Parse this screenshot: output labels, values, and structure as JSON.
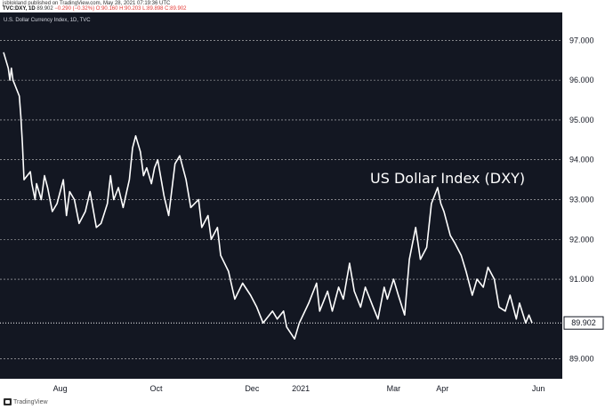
{
  "header": {
    "publisher": "jsblokland published on TradingView.com, May 28, 2021 07:19:36 UTC",
    "symbol": "TVC:DXY, 1D",
    "price": "89.902",
    "change": "−0.290 (−0.32%)",
    "ohlc": "O:90.160 H:90.203 L:89.898 C:89.902"
  },
  "footer": {
    "brand": "TradingView"
  },
  "chart_data": {
    "type": "line",
    "title": "U.S. Dollar Currency Index, 1D, TVC",
    "annotation": "US Dollar Index (DXY)",
    "x_ticks": [
      "Aug",
      "Oct",
      "Dec",
      "2021",
      "Mar",
      "Apr",
      "Jun"
    ],
    "y_ticks": [
      "97.000",
      "96.000",
      "95.000",
      "94.000",
      "93.000",
      "92.000",
      "91.000",
      "89.000"
    ],
    "ylim": [
      88.5,
      97.7
    ],
    "last_value": 89.902,
    "last_value_label": "89.902",
    "grid": true,
    "line_color": "#ffffff",
    "background": "#131722",
    "series": [
      {
        "x": [
          "2020-06-26",
          "2020-06-29",
          "2020-06-30",
          "2020-07-01",
          "2020-07-02",
          "2020-07-06",
          "2020-07-07",
          "2020-07-08",
          "2020-07-09",
          "2020-07-13",
          "2020-07-14",
          "2020-07-16",
          "2020-07-17",
          "2020-07-20",
          "2020-07-22",
          "2020-07-24",
          "2020-07-27",
          "2020-07-30",
          "2020-08-03",
          "2020-08-05",
          "2020-08-07",
          "2020-08-10",
          "2020-08-13",
          "2020-08-17",
          "2020-08-20",
          "2020-08-24",
          "2020-08-27",
          "2020-08-31",
          "2020-09-02",
          "2020-09-04",
          "2020-09-07",
          "2020-09-10",
          "2020-09-14",
          "2020-09-16",
          "2020-09-18",
          "2020-09-21",
          "2020-09-23",
          "2020-09-25",
          "2020-09-28",
          "2020-09-30",
          "2020-10-02",
          "2020-10-06",
          "2020-10-09",
          "2020-10-13",
          "2020-10-16",
          "2020-10-20",
          "2020-10-23",
          "2020-10-28",
          "2020-10-30",
          "2020-11-03",
          "2020-11-05",
          "2020-11-09",
          "2020-11-11",
          "2020-11-16",
          "2020-11-20",
          "2020-11-25",
          "2020-11-30",
          "2020-12-04",
          "2020-12-08",
          "2020-12-14",
          "2020-12-17",
          "2020-12-21",
          "2020-12-23",
          "2020-12-28",
          "2020-12-31",
          "2021-01-06",
          "2021-01-11",
          "2021-01-13",
          "2021-01-18",
          "2021-01-21",
          "2021-01-25",
          "2021-01-28",
          "2021-02-01",
          "2021-02-04",
          "2021-02-08",
          "2021-02-11",
          "2021-02-16",
          "2021-02-19",
          "2021-02-23",
          "2021-02-25",
          "2021-03-01",
          "2021-03-04",
          "2021-03-08",
          "2021-03-11",
          "2021-03-15",
          "2021-03-18",
          "2021-03-22",
          "2021-03-25",
          "2021-03-29",
          "2021-03-31",
          "2021-04-02",
          "2021-04-06",
          "2021-04-09",
          "2021-04-13",
          "2021-04-16",
          "2021-04-20",
          "2021-04-23",
          "2021-04-27",
          "2021-04-30",
          "2021-05-04",
          "2021-05-07",
          "2021-05-11",
          "2021-05-14",
          "2021-05-18",
          "2021-05-20",
          "2021-05-24",
          "2021-05-26",
          "2021-05-28"
        ],
        "y": [
          96.7,
          96.3,
          96.0,
          96.3,
          96.0,
          95.6,
          95.1,
          94.4,
          93.5,
          93.7,
          93.4,
          93.0,
          93.4,
          93.0,
          93.6,
          93.3,
          92.7,
          92.9,
          93.5,
          92.6,
          93.2,
          93.0,
          92.4,
          92.7,
          93.2,
          92.3,
          92.4,
          92.9,
          93.6,
          93.0,
          93.3,
          92.8,
          93.5,
          94.3,
          94.6,
          94.2,
          93.6,
          93.8,
          93.4,
          93.8,
          94.0,
          93.1,
          92.6,
          93.9,
          94.1,
          93.5,
          92.8,
          93.0,
          92.3,
          92.6,
          92.0,
          92.3,
          91.6,
          91.2,
          90.5,
          90.9,
          90.6,
          90.3,
          89.9,
          90.2,
          90.0,
          90.2,
          89.8,
          89.5,
          89.9,
          90.4,
          90.9,
          90.2,
          90.7,
          90.2,
          90.8,
          90.5,
          91.4,
          90.7,
          90.3,
          90.8,
          90.3,
          90.0,
          90.8,
          90.5,
          91.0,
          90.6,
          90.1,
          91.5,
          92.3,
          91.5,
          91.8,
          92.9,
          93.3,
          92.9,
          92.7,
          92.1,
          91.9,
          91.6,
          91.2,
          90.6,
          91.0,
          90.8,
          91.3,
          91.0,
          90.3,
          90.2,
          90.6,
          90.0,
          90.4,
          89.9,
          90.1,
          89.902
        ]
      }
    ]
  }
}
